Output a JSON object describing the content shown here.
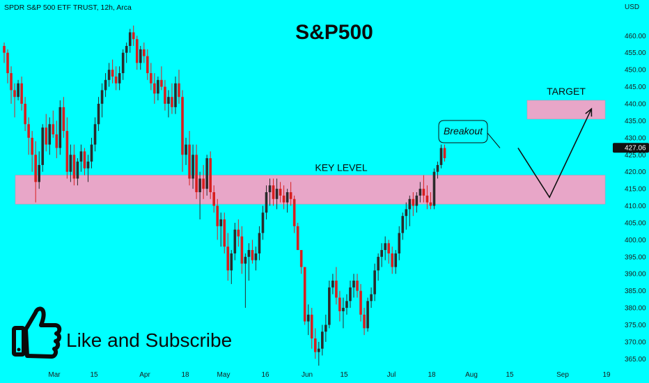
{
  "header": {
    "symbol_line": "SPDR S&P 500 ETF TRUST, 12h, Arca",
    "currency": "USD"
  },
  "overlay": {
    "title": "S&P500",
    "subscribe_text": "Like and Subscribe",
    "icon": "thumbs-up-icon"
  },
  "colors": {
    "background": "#00ffff",
    "bull": "#2a2a2a",
    "bear": "#d81e1e",
    "zone": "#e8a6c8",
    "last_price": "#111111"
  },
  "chart_data": {
    "type": "candlestick",
    "interval": "12h",
    "ylim": [
      362,
      466
    ],
    "y_ticks": [
      365,
      370,
      375,
      380,
      385,
      390,
      395,
      400,
      405,
      410,
      415,
      420,
      425,
      430,
      435,
      440,
      445,
      450,
      455,
      460
    ],
    "x_tick_labels": [
      "Mar",
      "15",
      "Apr",
      "18",
      "May",
      "16",
      "Jun",
      "15",
      "Jul",
      "18",
      "Aug",
      "15",
      "Sep",
      "19"
    ],
    "last_price": "427.06",
    "zones": [
      {
        "label": "KEY LEVEL",
        "low": 410.5,
        "high": 419
      },
      {
        "label": "TARGET",
        "low": 435.5,
        "high": 441
      }
    ],
    "annotation": {
      "text": "Breakout",
      "target_price": 427
    },
    "projection": [
      {
        "bar": 147,
        "price": 427
      },
      {
        "bar": 156,
        "price": 412.5
      },
      {
        "bar": 168,
        "price": 438.5
      }
    ],
    "candles": [
      [
        457,
        458,
        452,
        455
      ],
      [
        455,
        456,
        446,
        449
      ],
      [
        449,
        451,
        440,
        444
      ],
      [
        444,
        446,
        436,
        442
      ],
      [
        442,
        447,
        441,
        446
      ],
      [
        446,
        448,
        438,
        440
      ],
      [
        440,
        442,
        432,
        434
      ],
      [
        434,
        436,
        425,
        430
      ],
      [
        430,
        432,
        420,
        425
      ],
      [
        425,
        429,
        411,
        417
      ],
      [
        417,
        426,
        415,
        422
      ],
      [
        422,
        434,
        420,
        433
      ],
      [
        433,
        437,
        426,
        428
      ],
      [
        428,
        436,
        425,
        434
      ],
      [
        434,
        438,
        430,
        431
      ],
      [
        431,
        435,
        424,
        427
      ],
      [
        427,
        441,
        425,
        439
      ],
      [
        439,
        442,
        430,
        432
      ],
      [
        432,
        436,
        418,
        420
      ],
      [
        420,
        428,
        417,
        425
      ],
      [
        425,
        428,
        416,
        418
      ],
      [
        418,
        424,
        416,
        423
      ],
      [
        423,
        428,
        420,
        426
      ],
      [
        426,
        427,
        419,
        421
      ],
      [
        421,
        425,
        417,
        423
      ],
      [
        423,
        430,
        421,
        428
      ],
      [
        428,
        436,
        426,
        434
      ],
      [
        434,
        442,
        432,
        440
      ],
      [
        440,
        446,
        436,
        444
      ],
      [
        444,
        449,
        442,
        447
      ],
      [
        447,
        452,
        445,
        450
      ],
      [
        450,
        453,
        446,
        448
      ],
      [
        448,
        451,
        444,
        446
      ],
      [
        446,
        451,
        444,
        449
      ],
      [
        449,
        456,
        447,
        455
      ],
      [
        455,
        458,
        452,
        457
      ],
      [
        457,
        462,
        455,
        461
      ],
      [
        461,
        463,
        457,
        459
      ],
      [
        459,
        460,
        450,
        452
      ],
      [
        452,
        457,
        450,
        456
      ],
      [
        456,
        458,
        452,
        454
      ],
      [
        454,
        456,
        447,
        449
      ],
      [
        449,
        452,
        444,
        446
      ],
      [
        446,
        449,
        440,
        443
      ],
      [
        443,
        448,
        441,
        447
      ],
      [
        447,
        451,
        444,
        445
      ],
      [
        445,
        447,
        438,
        440
      ],
      [
        440,
        444,
        436,
        442
      ],
      [
        442,
        446,
        437,
        439
      ],
      [
        439,
        448,
        437,
        446
      ],
      [
        446,
        450,
        440,
        442
      ],
      [
        442,
        444,
        420,
        425
      ],
      [
        425,
        430,
        422,
        428
      ],
      [
        428,
        432,
        416,
        418
      ],
      [
        418,
        428,
        415,
        425
      ],
      [
        425,
        428,
        412,
        414
      ],
      [
        414,
        420,
        406,
        418
      ],
      [
        418,
        422,
        412,
        415
      ],
      [
        415,
        425,
        413,
        424
      ],
      [
        424,
        426,
        412,
        414
      ],
      [
        414,
        416,
        408,
        410
      ],
      [
        410,
        412,
        400,
        404
      ],
      [
        404,
        408,
        398,
        406
      ],
      [
        406,
        408,
        396,
        398
      ],
      [
        398,
        402,
        388,
        391
      ],
      [
        391,
        397,
        387,
        396
      ],
      [
        396,
        405,
        394,
        403
      ],
      [
        403,
        406,
        398,
        401
      ],
      [
        401,
        404,
        390,
        393
      ],
      [
        393,
        396,
        380,
        395
      ],
      [
        395,
        399,
        388,
        397
      ],
      [
        397,
        400,
        393,
        394
      ],
      [
        394,
        398,
        391,
        396
      ],
      [
        396,
        404,
        394,
        402
      ],
      [
        402,
        410,
        400,
        408
      ],
      [
        408,
        416,
        406,
        414
      ],
      [
        414,
        418,
        410,
        416
      ],
      [
        416,
        418,
        410,
        412
      ],
      [
        412,
        418,
        409,
        415
      ],
      [
        415,
        417,
        411,
        413
      ],
      [
        413,
        416,
        409,
        411
      ],
      [
        411,
        415,
        408,
        414
      ],
      [
        414,
        417,
        410,
        412
      ],
      [
        412,
        413,
        402,
        404
      ],
      [
        404,
        405,
        397,
        397
      ],
      [
        397,
        397,
        390,
        392
      ],
      [
        392,
        392,
        375,
        376
      ],
      [
        376,
        381,
        372,
        378
      ],
      [
        378,
        380,
        368,
        371
      ],
      [
        371,
        374,
        365,
        367
      ],
      [
        367,
        370,
        363,
        368
      ],
      [
        368,
        375,
        366,
        373
      ],
      [
        373,
        378,
        370,
        375
      ],
      [
        375,
        388,
        374,
        386
      ],
      [
        386,
        390,
        384,
        388
      ],
      [
        388,
        392,
        381,
        383
      ],
      [
        383,
        385,
        376,
        379
      ],
      [
        379,
        383,
        374,
        380
      ],
      [
        380,
        384,
        378,
        382
      ],
      [
        382,
        388,
        380,
        386
      ],
      [
        386,
        390,
        383,
        388
      ],
      [
        388,
        390,
        383,
        385
      ],
      [
        385,
        387,
        376,
        378
      ],
      [
        378,
        380,
        372,
        374
      ],
      [
        374,
        383,
        373,
        382
      ],
      [
        382,
        386,
        380,
        384
      ],
      [
        384,
        393,
        382,
        391
      ],
      [
        391,
        396,
        388,
        395
      ],
      [
        395,
        399,
        392,
        397
      ],
      [
        397,
        401,
        394,
        399
      ],
      [
        399,
        400,
        393,
        396
      ],
      [
        396,
        398,
        390,
        392
      ],
      [
        392,
        397,
        390,
        396
      ],
      [
        396,
        404,
        394,
        402
      ],
      [
        402,
        408,
        400,
        407
      ],
      [
        407,
        411,
        403,
        409
      ],
      [
        409,
        413,
        404,
        412
      ],
      [
        412,
        414,
        407,
        410
      ],
      [
        410,
        414,
        408,
        413
      ],
      [
        413,
        417,
        411,
        415
      ],
      [
        415,
        419,
        411,
        413
      ],
      [
        413,
        416,
        409,
        411
      ],
      [
        411,
        414,
        409,
        410
      ],
      [
        410,
        421,
        409,
        420
      ],
      [
        420,
        423,
        418,
        422
      ],
      [
        422,
        428,
        421,
        427
      ],
      [
        427,
        428,
        423,
        424
      ]
    ]
  }
}
